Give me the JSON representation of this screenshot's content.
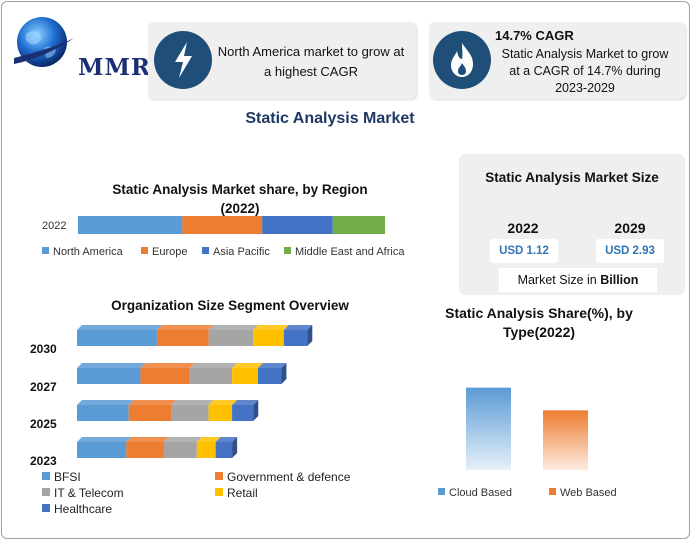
{
  "brand": {
    "name": "MMR"
  },
  "highlight_cards": [
    {
      "icon": "lightning-icon",
      "text_line1": "North America market to grow at",
      "text_line2": "a highest CAGR"
    },
    {
      "icon": "flame-icon",
      "heading": "14.7% CAGR",
      "text_line1": "Static Analysis Market to grow",
      "text_line2": "at a CAGR of 14.7% during",
      "text_line3": "2023-2029"
    }
  ],
  "main_title": "Static Analysis Market",
  "colors": {
    "blue": "#5b9bd5",
    "orange": "#ed7d31",
    "gray": "#a5a5a5",
    "yellow": "#ffc000",
    "darkblue": "#4472c4",
    "green": "#70ad47",
    "navy": "#1f4e79"
  },
  "chart_data": [
    {
      "type": "bar",
      "orientation": "horizontal-stacked",
      "title_line1": "Static Analysis Market share, by Region",
      "title_line2": "(2022)",
      "categories": [
        "2022"
      ],
      "series": [
        {
          "name": "North America",
          "values": [
            34
          ],
          "color": "#5b9bd5"
        },
        {
          "name": "Europe",
          "values": [
            26
          ],
          "color": "#ed7d31"
        },
        {
          "name": "Asia Pacific",
          "values": [
            23
          ],
          "color": "#4472c4"
        },
        {
          "name": "Middle East and Africa",
          "values": [
            17
          ],
          "color": "#70ad47"
        }
      ],
      "legend": "bottom"
    },
    {
      "type": "bar",
      "orientation": "horizontal-stacked",
      "title": "Organization Size Segment Overview",
      "categories": [
        "2030",
        "2027",
        "2025",
        "2023"
      ],
      "series": [
        {
          "name": "BFSI",
          "values": [
            34,
            27,
            22,
            21
          ],
          "color": "#5b9bd5"
        },
        {
          "name": "Government & defence",
          "values": [
            22,
            21,
            18,
            16
          ],
          "color": "#ed7d31"
        },
        {
          "name": "IT & Telecom",
          "values": [
            19,
            18,
            16,
            14
          ],
          "color": "#a5a5a5"
        },
        {
          "name": "Retail",
          "values": [
            13,
            11,
            10,
            8
          ],
          "color": "#ffc000"
        },
        {
          "name": "Healthcare",
          "values": [
            10,
            10,
            9,
            7
          ],
          "color": "#4472c4"
        }
      ],
      "legend": "bottom"
    },
    {
      "type": "bar",
      "title_line1": "Static Analysis Share(%), by",
      "title_line2": "Type(2022)",
      "categories": [
        "Cloud Based",
        "Web Based"
      ],
      "values": [
        58,
        42
      ],
      "colors": [
        "#5b9bd5",
        "#ed7d31"
      ],
      "legend": "bottom"
    }
  ],
  "market_size": {
    "title": "Static Analysis Market Size",
    "years": [
      {
        "year": "2022",
        "value": "USD 1.12"
      },
      {
        "year": "2029",
        "value": "USD 2.93"
      }
    ],
    "footer_prefix": "Market Size in ",
    "footer_unit": "Billion"
  }
}
